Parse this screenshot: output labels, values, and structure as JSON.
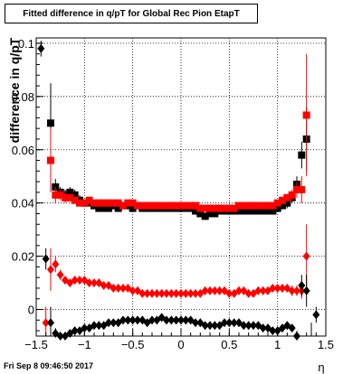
{
  "chart_data": {
    "type": "scatter",
    "title": "Fitted difference in q/pT for Global Rec Pion EtapT",
    "xlabel": "η",
    "ylabel": "difference in q/pT",
    "xlim": [
      -1.5,
      1.5
    ],
    "ylim": [
      -0.01,
      0.102
    ],
    "grid": true,
    "x_ticks": [
      -1.5,
      -1,
      -0.5,
      0,
      0.5,
      1,
      1.5
    ],
    "x_tick_labels": [
      "−1.5",
      "−1",
      "−0.5",
      "0",
      "0.5",
      "1",
      "1.5"
    ],
    "y_ticks": [
      0,
      0.02,
      0.04,
      0.06,
      0.08,
      0.1
    ],
    "y_tick_labels": [
      "0",
      "0.02",
      "0.04",
      "0.06",
      "0.08",
      "0.1"
    ],
    "series": [
      {
        "marker": "square",
        "color": "#000000",
        "x": [
          -1.35,
          -1.3,
          -1.25,
          -1.2,
          -1.15,
          -1.1,
          -1.05,
          -1.0,
          -0.95,
          -0.9,
          -0.85,
          -0.8,
          -0.75,
          -0.7,
          -0.65,
          -0.6,
          -0.55,
          -0.5,
          -0.45,
          -0.4,
          -0.35,
          -0.3,
          -0.25,
          -0.2,
          -0.15,
          -0.1,
          -0.05,
          0.0,
          0.05,
          0.1,
          0.15,
          0.2,
          0.25,
          0.3,
          0.35,
          0.4,
          0.45,
          0.5,
          0.55,
          0.6,
          0.65,
          0.7,
          0.75,
          0.8,
          0.85,
          0.9,
          0.95,
          1.0,
          1.05,
          1.1,
          1.15,
          1.2,
          1.25,
          1.3
        ],
        "y": [
          0.07,
          0.046,
          0.044,
          0.043,
          0.044,
          0.043,
          0.041,
          0.04,
          0.04,
          0.039,
          0.038,
          0.038,
          0.038,
          0.039,
          0.038,
          0.039,
          0.039,
          0.038,
          0.039,
          0.038,
          0.038,
          0.038,
          0.038,
          0.038,
          0.038,
          0.038,
          0.038,
          0.038,
          0.038,
          0.038,
          0.037,
          0.036,
          0.035,
          0.036,
          0.036,
          0.037,
          0.037,
          0.037,
          0.037,
          0.037,
          0.037,
          0.037,
          0.037,
          0.037,
          0.037,
          0.037,
          0.037,
          0.038,
          0.039,
          0.04,
          0.042,
          0.047,
          0.058,
          0.064
        ],
        "yerr": [
          0.015,
          0.003,
          0.002,
          0.002,
          0.002,
          0.002,
          0.002,
          0.001,
          0.001,
          0.001,
          0.001,
          0.001,
          0.001,
          0.001,
          0.001,
          0.001,
          0.001,
          0.001,
          0.001,
          0.001,
          0.001,
          0.001,
          0.001,
          0.001,
          0.001,
          0.001,
          0.001,
          0.001,
          0.001,
          0.001,
          0.001,
          0.001,
          0.001,
          0.001,
          0.001,
          0.001,
          0.001,
          0.001,
          0.001,
          0.001,
          0.001,
          0.001,
          0.001,
          0.001,
          0.001,
          0.001,
          0.001,
          0.001,
          0.001,
          0.002,
          0.002,
          0.003,
          0.005,
          0.012
        ]
      },
      {
        "marker": "square",
        "color": "#ff0000",
        "x": [
          -1.35,
          -1.3,
          -1.25,
          -1.2,
          -1.15,
          -1.1,
          -1.05,
          -1.0,
          -0.95,
          -0.9,
          -0.85,
          -0.8,
          -0.75,
          -0.7,
          -0.65,
          -0.6,
          -0.55,
          -0.5,
          -0.45,
          -0.4,
          -0.35,
          -0.3,
          -0.25,
          -0.2,
          -0.15,
          -0.1,
          -0.05,
          0.0,
          0.05,
          0.1,
          0.15,
          0.2,
          0.25,
          0.3,
          0.35,
          0.4,
          0.45,
          0.5,
          0.55,
          0.6,
          0.65,
          0.7,
          0.75,
          0.8,
          0.85,
          0.9,
          0.95,
          1.0,
          1.05,
          1.1,
          1.15,
          1.2,
          1.25,
          1.3
        ],
        "y": [
          0.056,
          0.043,
          0.043,
          0.042,
          0.042,
          0.041,
          0.04,
          0.04,
          0.041,
          0.04,
          0.04,
          0.04,
          0.04,
          0.04,
          0.04,
          0.039,
          0.04,
          0.04,
          0.039,
          0.039,
          0.039,
          0.039,
          0.039,
          0.039,
          0.039,
          0.039,
          0.039,
          0.039,
          0.039,
          0.039,
          0.039,
          0.038,
          0.038,
          0.038,
          0.038,
          0.038,
          0.038,
          0.038,
          0.038,
          0.039,
          0.039,
          0.039,
          0.039,
          0.039,
          0.039,
          0.039,
          0.039,
          0.04,
          0.041,
          0.042,
          0.043,
          0.045,
          0.045,
          0.073
        ],
        "yerr": [
          0.012,
          0.003,
          0.002,
          0.002,
          0.001,
          0.001,
          0.001,
          0.001,
          0.001,
          0.001,
          0.001,
          0.001,
          0.001,
          0.001,
          0.001,
          0.001,
          0.001,
          0.001,
          0.001,
          0.001,
          0.001,
          0.001,
          0.001,
          0.001,
          0.001,
          0.001,
          0.001,
          0.001,
          0.001,
          0.001,
          0.001,
          0.001,
          0.001,
          0.001,
          0.001,
          0.001,
          0.001,
          0.001,
          0.001,
          0.001,
          0.001,
          0.001,
          0.001,
          0.001,
          0.001,
          0.001,
          0.001,
          0.001,
          0.001,
          0.001,
          0.002,
          0.003,
          0.005,
          0.023
        ]
      },
      {
        "marker": "diamond",
        "color": "#ff0000",
        "x": [
          -1.4,
          -1.35,
          -1.3,
          -1.25,
          -1.2,
          -1.15,
          -1.1,
          -1.05,
          -1.0,
          -0.95,
          -0.9,
          -0.85,
          -0.8,
          -0.75,
          -0.7,
          -0.65,
          -0.6,
          -0.55,
          -0.5,
          -0.45,
          -0.4,
          -0.35,
          -0.3,
          -0.25,
          -0.2,
          -0.15,
          -0.1,
          -0.05,
          0.0,
          0.05,
          0.1,
          0.15,
          0.2,
          0.25,
          0.3,
          0.35,
          0.4,
          0.45,
          0.5,
          0.55,
          0.6,
          0.65,
          0.7,
          0.75,
          0.8,
          0.85,
          0.9,
          0.95,
          1.0,
          1.05,
          1.1,
          1.15,
          1.2,
          1.25,
          1.3
        ],
        "y": [
          -0.005,
          0.015,
          0.017,
          0.013,
          0.011,
          0.01,
          0.011,
          0.011,
          0.011,
          0.01,
          0.01,
          0.01,
          0.009,
          0.009,
          0.008,
          0.008,
          0.008,
          0.008,
          0.007,
          0.007,
          0.006,
          0.006,
          0.006,
          0.006,
          0.006,
          0.006,
          0.006,
          0.006,
          0.006,
          0.006,
          0.006,
          0.006,
          0.006,
          0.007,
          0.007,
          0.007,
          0.007,
          0.007,
          0.006,
          0.006,
          0.007,
          0.007,
          0.006,
          0.006,
          0.007,
          0.007,
          0.007,
          0.008,
          0.008,
          0.008,
          0.008,
          0.007,
          0.007,
          0.007,
          0.02
        ],
        "yerr": [
          0.006,
          0.008,
          0.003,
          0.002,
          0.001,
          0.001,
          0.001,
          0.001,
          0.001,
          0.001,
          0.001,
          0.001,
          0.001,
          0.001,
          0.001,
          0.001,
          0.001,
          0.001,
          0.001,
          0.001,
          0.001,
          0.001,
          0.001,
          0.001,
          0.001,
          0.001,
          0.001,
          0.001,
          0.001,
          0.001,
          0.001,
          0.001,
          0.001,
          0.001,
          0.001,
          0.001,
          0.001,
          0.001,
          0.001,
          0.001,
          0.001,
          0.001,
          0.001,
          0.001,
          0.001,
          0.001,
          0.001,
          0.001,
          0.001,
          0.001,
          0.001,
          0.002,
          0.002,
          0.003,
          0.012
        ]
      },
      {
        "marker": "diamond",
        "color": "#000000",
        "x": [
          -1.45,
          -1.4,
          -1.35,
          -1.3,
          -1.25,
          -1.2,
          -1.15,
          -1.1,
          -1.05,
          -1.0,
          -0.95,
          -0.9,
          -0.85,
          -0.8,
          -0.75,
          -0.7,
          -0.65,
          -0.6,
          -0.55,
          -0.5,
          -0.45,
          -0.4,
          -0.35,
          -0.3,
          -0.25,
          -0.2,
          -0.15,
          -0.1,
          -0.05,
          0.0,
          0.05,
          0.1,
          0.15,
          0.2,
          0.25,
          0.3,
          0.35,
          0.4,
          0.45,
          0.5,
          0.55,
          0.6,
          0.65,
          0.7,
          0.75,
          0.8,
          0.85,
          0.9,
          0.95,
          1.0,
          1.05,
          1.1,
          1.15,
          1.2,
          1.25,
          1.3,
          1.35,
          1.4
        ],
        "y": [
          0.098,
          0.019,
          -0.005,
          -0.009,
          -0.01,
          -0.01,
          -0.009,
          -0.008,
          -0.008,
          -0.007,
          -0.007,
          -0.006,
          -0.006,
          -0.006,
          -0.005,
          -0.005,
          -0.005,
          -0.004,
          -0.004,
          -0.004,
          -0.004,
          -0.004,
          -0.005,
          -0.004,
          -0.004,
          -0.003,
          -0.004,
          -0.004,
          -0.004,
          -0.004,
          -0.004,
          -0.004,
          -0.005,
          -0.005,
          -0.006,
          -0.006,
          -0.006,
          -0.006,
          -0.005,
          -0.005,
          -0.005,
          -0.005,
          -0.006,
          -0.006,
          -0.006,
          -0.006,
          -0.007,
          -0.007,
          -0.008,
          -0.008,
          -0.007,
          -0.006,
          -0.007,
          -0.01,
          0.009,
          0.007,
          -0.013,
          -0.002
        ],
        "yerr": [
          0.003,
          0.004,
          0.006,
          0.002,
          0.001,
          0.001,
          0.001,
          0.001,
          0.001,
          0.001,
          0.001,
          0.001,
          0.001,
          0.001,
          0.001,
          0.001,
          0.001,
          0.001,
          0.001,
          0.001,
          0.001,
          0.001,
          0.001,
          0.001,
          0.001,
          0.001,
          0.001,
          0.001,
          0.001,
          0.001,
          0.001,
          0.001,
          0.001,
          0.001,
          0.001,
          0.001,
          0.001,
          0.001,
          0.001,
          0.001,
          0.001,
          0.001,
          0.001,
          0.001,
          0.001,
          0.001,
          0.001,
          0.001,
          0.001,
          0.001,
          0.001,
          0.001,
          0.001,
          0.002,
          0.004,
          0.006,
          0.008,
          0.003
        ]
      }
    ]
  },
  "footer": {
    "timestamp": "Fri Sep  8 09:46:50 2017"
  }
}
